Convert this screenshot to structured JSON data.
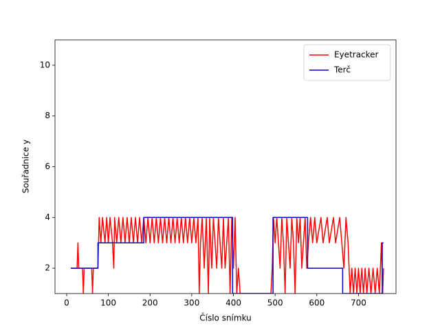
{
  "chart_data": {
    "type": "line",
    "xlabel": "Číslo snímku",
    "ylabel": "Souřadnice y",
    "xlim": [
      -28,
      790
    ],
    "ylim": [
      1,
      11
    ],
    "xticks": [
      0,
      100,
      200,
      300,
      400,
      500,
      600,
      700
    ],
    "yticks": [
      2,
      4,
      6,
      8,
      10
    ],
    "legend": "upper right",
    "series": [
      {
        "name": "Eyetracker",
        "color": "#ff0000",
        "x": [
          10,
          25,
          27,
          29,
          38,
          40,
          42,
          60,
          62,
          64,
          75,
          78,
          82,
          86,
          92,
          96,
          100,
          104,
          110,
          113,
          115,
          120,
          125,
          130,
          135,
          140,
          145,
          150,
          155,
          160,
          165,
          170,
          175,
          180,
          185,
          190,
          195,
          200,
          205,
          210,
          215,
          220,
          225,
          230,
          235,
          240,
          245,
          250,
          255,
          260,
          265,
          270,
          275,
          280,
          285,
          290,
          295,
          300,
          305,
          310,
          315,
          318,
          321,
          325,
          330,
          335,
          340,
          343,
          348,
          352,
          356,
          360,
          364,
          368,
          372,
          376,
          380,
          384,
          388,
          392,
          396,
          400,
          404,
          408,
          412,
          416,
          420,
          490,
          493,
          496,
          500,
          504,
          508,
          512,
          516,
          520,
          524,
          528,
          532,
          536,
          540,
          544,
          548,
          552,
          556,
          560,
          564,
          568,
          572,
          576,
          580,
          585,
          590,
          595,
          600,
          610,
          615,
          625,
          630,
          640,
          645,
          655,
          660,
          665,
          670,
          675,
          680,
          684,
          688,
          692,
          696,
          700,
          704,
          708,
          712,
          716,
          720,
          725,
          730,
          735,
          740,
          745,
          750,
          755,
          758,
          760
        ],
        "values": [
          2,
          2,
          3,
          2,
          2,
          1,
          2,
          2,
          1,
          2,
          2,
          4,
          3,
          4,
          3,
          4,
          3,
          4,
          3,
          2,
          4,
          3,
          4,
          3,
          4,
          3,
          4,
          3,
          4,
          3,
          4,
          3,
          4,
          3,
          4,
          3,
          4,
          3,
          4,
          3,
          4,
          3,
          4,
          3,
          4,
          3,
          4,
          3,
          4,
          3,
          4,
          3,
          4,
          3,
          4,
          3,
          4,
          3,
          4,
          3,
          4,
          1,
          3,
          4,
          2,
          4,
          1,
          4,
          2,
          4,
          3,
          2,
          4,
          3,
          2,
          4,
          2,
          3,
          4,
          1,
          4,
          2,
          4,
          1,
          2,
          1,
          1,
          1,
          2,
          4,
          3,
          4,
          3,
          2,
          4,
          3,
          1,
          4,
          3,
          2,
          4,
          3,
          1,
          4,
          3,
          4,
          2,
          3,
          4,
          2,
          3,
          4,
          3,
          4,
          3,
          4,
          3,
          4,
          3,
          4,
          3,
          4,
          3,
          2,
          4,
          3,
          1,
          2,
          1,
          2,
          1,
          2,
          1,
          2,
          1,
          2,
          1,
          2,
          1,
          2,
          1,
          2,
          1,
          3,
          1,
          2
        ]
      },
      {
        "name": "Terč",
        "color": "#0000cc",
        "x": [
          10,
          75,
          75,
          185,
          185,
          398,
          398,
          495,
          495,
          578,
          578,
          662,
          662,
          757,
          757,
          760
        ],
        "values": [
          2,
          2,
          3,
          3,
          4,
          4,
          1,
          1,
          4,
          4,
          2,
          2,
          1,
          1,
          3,
          3
        ]
      }
    ]
  }
}
